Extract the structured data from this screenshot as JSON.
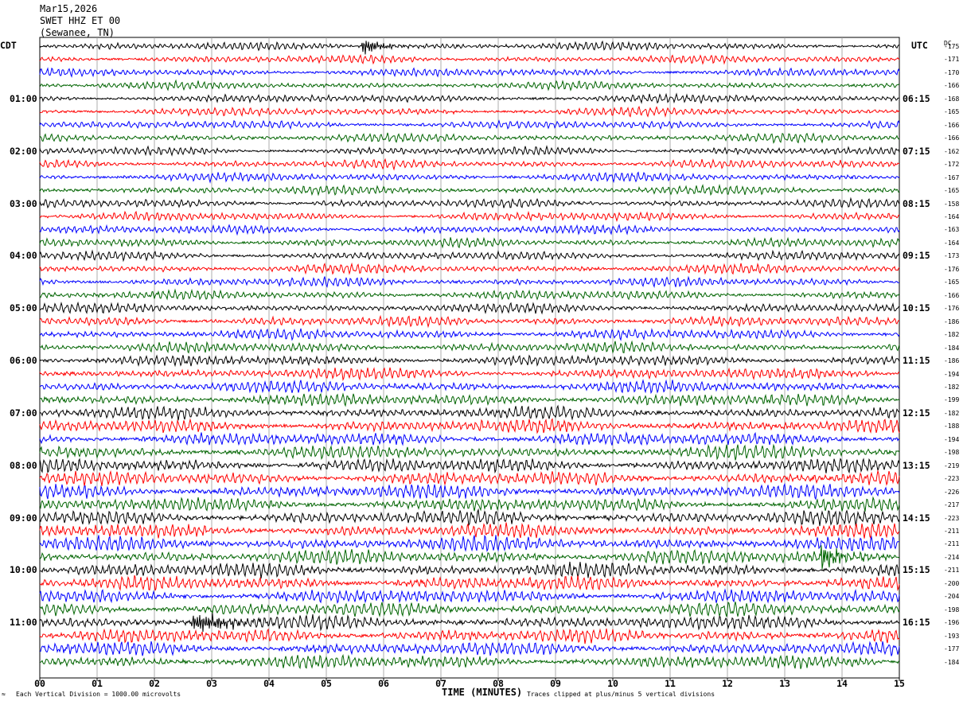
{
  "header": {
    "date": "Mar15,2026",
    "station": "SWET HHZ ET 00",
    "location": "(Sewanee, TN)"
  },
  "left_zone": "CDT",
  "right_zone": "UTC",
  "dc_label": "DC",
  "x_axis_title": "TIME (MINUTES)",
  "footer_left": "Each Vertical Division = 1000.00 microvolts",
  "footer_right": "Traces clipped at plus/minus 5 vertical divisions",
  "footer_mark": "≈",
  "chart_data": {
    "type": "line",
    "title": "SWET HHZ ET 00",
    "xlabel": "TIME (MINUTES)",
    "xlim": [
      0,
      15
    ],
    "x_ticks": [
      "00",
      "01",
      "02",
      "03",
      "04",
      "05",
      "06",
      "07",
      "08",
      "09",
      "10",
      "11",
      "12",
      "13",
      "14",
      "15"
    ],
    "trace_minutes": 15,
    "trace_count": 48,
    "trace_colors": [
      "#000000",
      "#ff0000",
      "#0000ff",
      "#006400"
    ],
    "left_time_labels": [
      "01:00",
      "02:00",
      "03:00",
      "04:00",
      "05:00",
      "06:00",
      "07:00",
      "08:00",
      "09:00",
      "10:00",
      "11:00"
    ],
    "right_time_labels": [
      "06:15",
      "07:15",
      "08:15",
      "09:15",
      "10:15",
      "11:15",
      "12:15",
      "13:15",
      "14:15",
      "15:15",
      "16:15"
    ],
    "dc_offsets": [
      -175,
      -171,
      -170,
      -166,
      -168,
      -165,
      -166,
      -166,
      -162,
      -172,
      -167,
      -165,
      -158,
      -164,
      -163,
      -164,
      -173,
      -176,
      -165,
      -166,
      -176,
      -186,
      -182,
      -184,
      -186,
      -194,
      -182,
      -199,
      -182,
      -188,
      -194,
      -198,
      -219,
      -223,
      -226,
      -217,
      -223,
      -211,
      -211,
      -214,
      -211,
      -200,
      -204,
      -198,
      -196,
      -193,
      -177,
      -184
    ],
    "noise_level": [
      0.3,
      0.28,
      0.28,
      0.29,
      0.3,
      0.3,
      0.31,
      0.32,
      0.32,
      0.33,
      0.33,
      0.33,
      0.33,
      0.34,
      0.34,
      0.35,
      0.35,
      0.36,
      0.37,
      0.38,
      0.4,
      0.42,
      0.44,
      0.46,
      0.48,
      0.52,
      0.55,
      0.58,
      0.6,
      0.66,
      0.66,
      0.66,
      0.7,
      0.7,
      0.7,
      0.7,
      0.72,
      0.72,
      0.72,
      0.72,
      0.74,
      0.7,
      0.7,
      0.7,
      0.7,
      0.72,
      0.7,
      0.7
    ],
    "events": [
      {
        "trace": 0,
        "start_min": 5.6,
        "end_min": 6.5,
        "amplitude": 2.2,
        "label": ""
      },
      {
        "trace": 39,
        "start_min": 13.6,
        "end_min": 14.6,
        "amplitude": 2.0,
        "label": ""
      },
      {
        "trace": 44,
        "start_min": 2.6,
        "end_min": 4.6,
        "amplitude": 1.5,
        "label": ""
      }
    ]
  }
}
